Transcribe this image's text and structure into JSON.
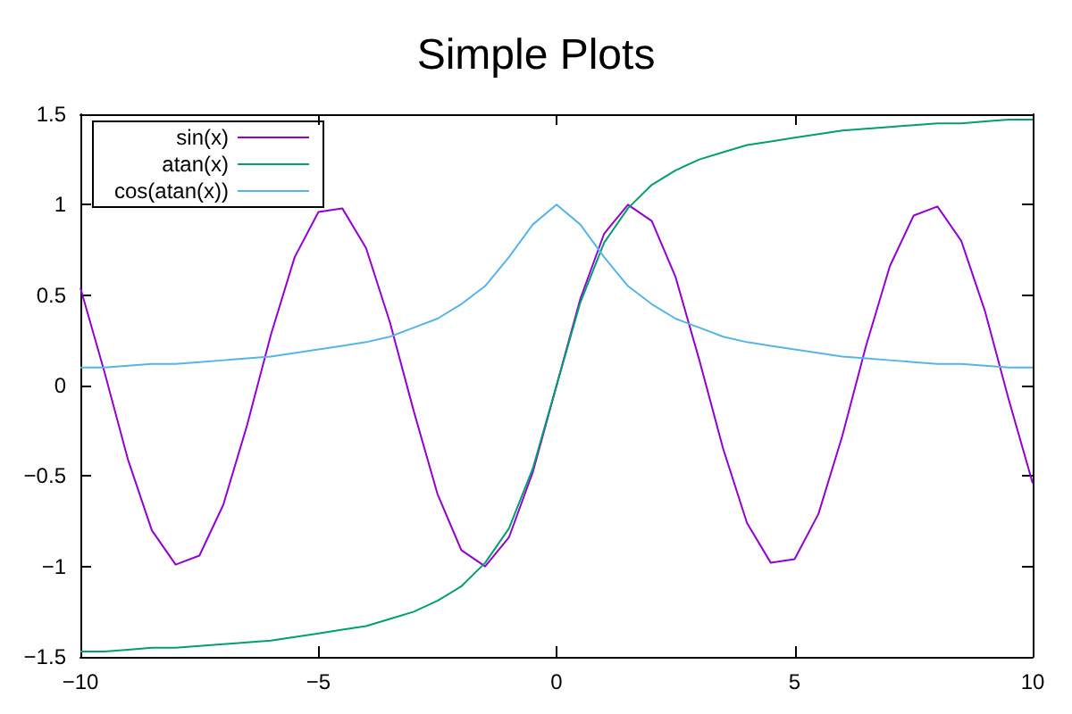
{
  "chart_data": {
    "type": "line",
    "title": "Simple Plots",
    "x": [
      -10,
      -9.5,
      -9,
      -8.5,
      -8,
      -7.5,
      -7,
      -6.5,
      -6,
      -5.5,
      -5,
      -4.5,
      -4,
      -3.5,
      -3,
      -2.5,
      -2,
      -1.5,
      -1,
      -0.5,
      0,
      0.5,
      1,
      1.5,
      2,
      2.5,
      3,
      3.5,
      4,
      4.5,
      5,
      5.5,
      6,
      6.5,
      7,
      7.5,
      8,
      8.5,
      9,
      9.5,
      10
    ],
    "series": [
      {
        "name": "sin(x)",
        "color": "#9400d3",
        "values": [
          0.54,
          0.08,
          -0.41,
          -0.8,
          -0.99,
          -0.94,
          -0.66,
          -0.22,
          0.28,
          0.71,
          0.96,
          0.98,
          0.76,
          0.35,
          -0.14,
          -0.6,
          -0.91,
          -1.0,
          -0.84,
          -0.48,
          0,
          0.48,
          0.84,
          1.0,
          0.91,
          0.6,
          0.14,
          -0.35,
          -0.76,
          -0.98,
          -0.96,
          -0.71,
          -0.28,
          0.22,
          0.66,
          0.94,
          0.99,
          0.8,
          0.41,
          -0.08,
          -0.54
        ]
      },
      {
        "name": "atan(x)",
        "color": "#009e73",
        "values": [
          -1.47,
          -1.47,
          -1.46,
          -1.45,
          -1.45,
          -1.44,
          -1.43,
          -1.42,
          -1.41,
          -1.39,
          -1.37,
          -1.35,
          -1.33,
          -1.29,
          -1.25,
          -1.19,
          -1.11,
          -0.98,
          -0.79,
          -0.46,
          0,
          0.46,
          0.79,
          0.98,
          1.11,
          1.19,
          1.25,
          1.29,
          1.33,
          1.35,
          1.37,
          1.39,
          1.41,
          1.42,
          1.43,
          1.44,
          1.45,
          1.45,
          1.46,
          1.47,
          1.47
        ]
      },
      {
        "name": "cos(atan(x))",
        "color": "#56b4e9",
        "values": [
          0.1,
          0.1,
          0.11,
          0.12,
          0.12,
          0.13,
          0.14,
          0.15,
          0.16,
          0.18,
          0.2,
          0.22,
          0.24,
          0.27,
          0.32,
          0.37,
          0.45,
          0.55,
          0.71,
          0.89,
          1,
          0.89,
          0.71,
          0.55,
          0.45,
          0.37,
          0.32,
          0.27,
          0.24,
          0.22,
          0.2,
          0.18,
          0.16,
          0.15,
          0.14,
          0.13,
          0.12,
          0.12,
          0.11,
          0.1,
          0.1
        ]
      }
    ],
    "xlim": [
      -10,
      10
    ],
    "xticks": [
      {
        "value": -10,
        "label": "−10"
      },
      {
        "value": -5,
        "label": "−5"
      },
      0,
      5,
      10
    ],
    "ylim": [
      -1.5,
      1.5
    ],
    "yticks": [
      {
        "value": -1.5,
        "label": "−1.5"
      },
      {
        "value": -1,
        "label": "−1"
      },
      {
        "value": -0.5,
        "label": "−0.5"
      },
      0,
      0.5,
      1,
      1.5
    ],
    "grid": false,
    "legend": "top left",
    "marker": "none",
    "line_style": "solid"
  }
}
